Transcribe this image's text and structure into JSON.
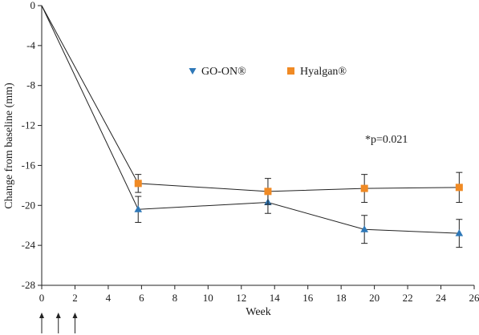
{
  "chart_data": {
    "type": "line",
    "title": "",
    "xlabel": "Week",
    "ylabel": "Change from baseline (mm)",
    "xlim": [
      0,
      26
    ],
    "ylim": [
      -28,
      0
    ],
    "xticks": [
      "0",
      "2",
      "4",
      "6",
      "8",
      "10",
      "12",
      "14",
      "16",
      "18",
      "20",
      "22",
      "24",
      "26"
    ],
    "xtick_values": [
      0,
      2,
      4,
      6,
      8,
      10,
      12,
      14,
      16,
      18,
      20,
      22,
      24,
      26
    ],
    "yticks": [
      "0",
      "-4",
      "-8",
      "-12",
      "-16",
      "-20",
      "-24",
      "-28"
    ],
    "ytick_values": [
      0,
      -4,
      -8,
      -12,
      -16,
      -20,
      -24,
      -28
    ],
    "grid": false,
    "legend_placement": "top-center",
    "series": [
      {
        "name": "GO-ON®",
        "marker": "triangle",
        "color": "#2e78b8",
        "x": [
          0,
          5.8,
          13.6,
          19.4,
          25.1
        ],
        "y": [
          0,
          -20.4,
          -19.7,
          -22.4,
          -22.8
        ],
        "err": [
          0,
          1.3,
          1.1,
          1.4,
          1.4
        ]
      },
      {
        "name": "Hyalgan®",
        "marker": "square",
        "color": "#f08a24",
        "x": [
          0,
          5.8,
          13.6,
          19.4,
          25.1
        ],
        "y": [
          0,
          -17.8,
          -18.6,
          -18.3,
          -18.2
        ],
        "err": [
          0,
          0.9,
          1.3,
          1.4,
          1.5
        ]
      }
    ],
    "annotations": [
      {
        "text": "*p=0.021",
        "x": 19.8,
        "y": -13.3
      }
    ],
    "injection_arrows_weeks": [
      0,
      1,
      2
    ]
  }
}
